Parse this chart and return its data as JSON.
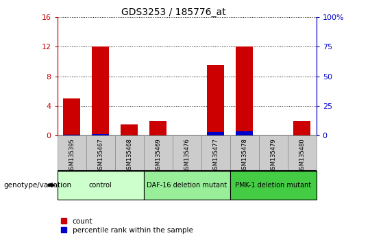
{
  "title": "GDS3253 / 185776_at",
  "samples": [
    "GSM135395",
    "GSM135467",
    "GSM135468",
    "GSM135469",
    "GSM135476",
    "GSM135477",
    "GSM135478",
    "GSM135479",
    "GSM135480"
  ],
  "count_values": [
    5.0,
    12.0,
    1.5,
    2.0,
    0.05,
    9.5,
    12.0,
    0.05,
    2.0
  ],
  "percentile_values": [
    1.0,
    1.5,
    0.3,
    0.3,
    0.05,
    2.8,
    3.5,
    0.05,
    0.3
  ],
  "ylim_left": [
    0,
    16
  ],
  "ylim_right": [
    0,
    100
  ],
  "yticks_left": [
    0,
    4,
    8,
    12,
    16
  ],
  "yticks_right": [
    0,
    25,
    50,
    75,
    100
  ],
  "ytick_labels_right": [
    "0",
    "25",
    "50",
    "75",
    "100%"
  ],
  "count_color": "#cc0000",
  "percentile_color": "#0000cc",
  "bar_width": 0.6,
  "group_colors": [
    "#ccffcc",
    "#99ee99",
    "#44cc44"
  ],
  "group_labels": [
    "control",
    "DAF-16 deletion mutant",
    "PMK-1 deletion mutant"
  ],
  "group_starts": [
    0,
    3,
    6
  ],
  "group_ends": [
    3,
    6,
    9
  ],
  "tick_bg_color": "#cccccc",
  "legend_count_label": "count",
  "legend_percentile_label": "percentile rank within the sample",
  "genotype_label": "genotype/variation"
}
